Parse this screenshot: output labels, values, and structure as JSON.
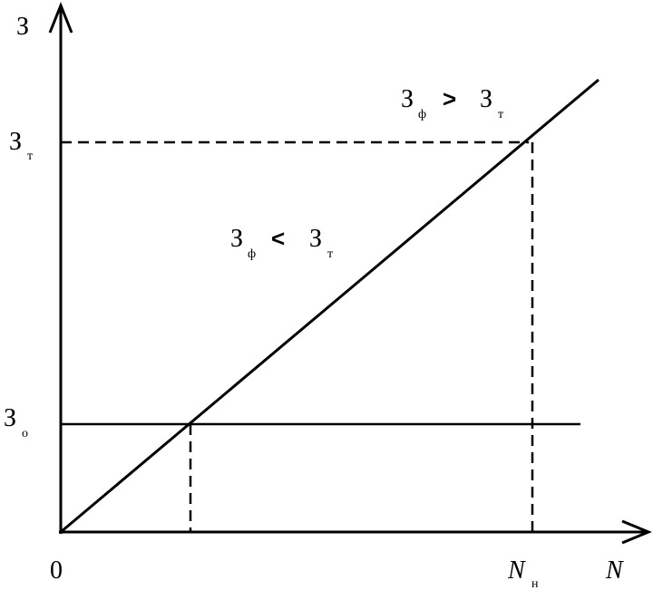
{
  "axes": {
    "y_label": "З",
    "x_label": "N",
    "origin": "0"
  },
  "levels": [
    {
      "symbol": "З",
      "subscript": "т"
    },
    {
      "symbol": "З",
      "subscript": "о"
    }
  ],
  "x_marks": [
    {
      "symbol": "N",
      "subscript": "н"
    }
  ],
  "annotations": [
    {
      "left": "З",
      "left_sub": "ф",
      "sign": ">",
      "right": "З",
      "right_sub": "т"
    },
    {
      "left": "З",
      "left_sub": "ф",
      "sign": "<",
      "right": "З",
      "right_sub": "т"
    }
  ]
}
